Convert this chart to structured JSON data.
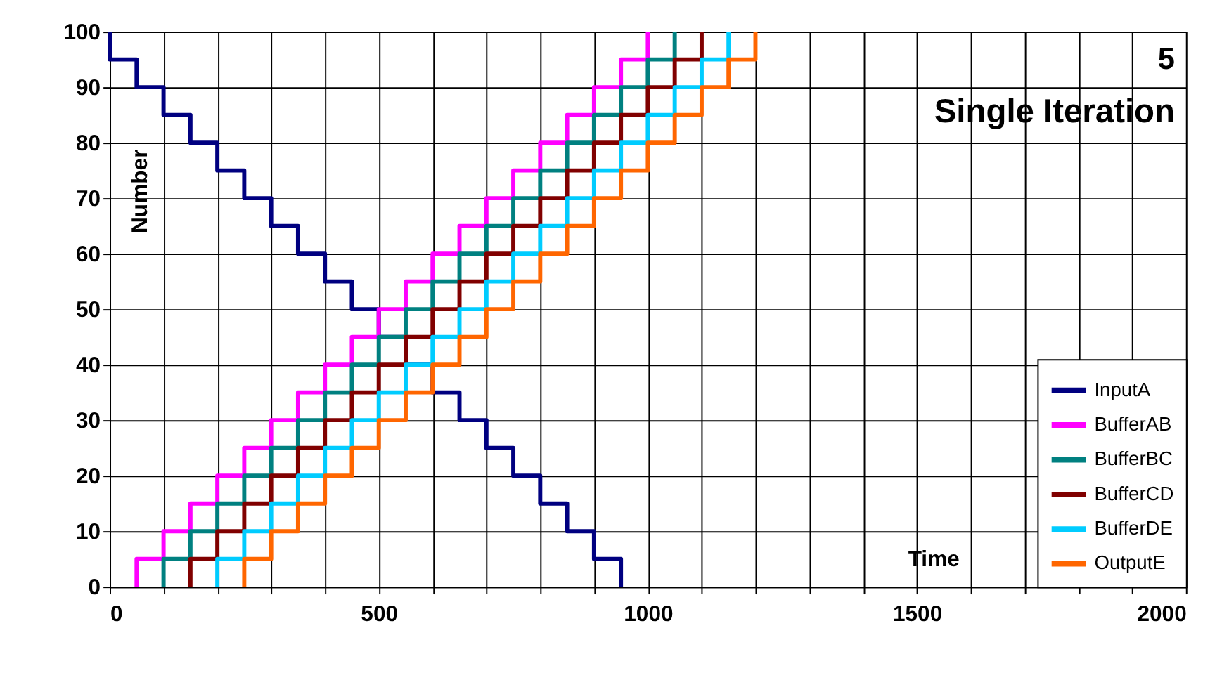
{
  "chart_data": {
    "type": "step",
    "annotations": [
      "5",
      "Single Iteration"
    ],
    "xlabel": "Time",
    "ylabel": "Number",
    "xlim": [
      0,
      2000
    ],
    "ylim": [
      0,
      100
    ],
    "xticks": [
      0,
      {
        "value": 100,
        "label": null
      },
      {
        "value": 200,
        "label": null
      },
      {
        "value": 300,
        "label": null
      },
      {
        "value": 400,
        "label": null
      },
      500,
      {
        "value": 600,
        "label": null
      },
      {
        "value": 700,
        "label": null
      },
      {
        "value": 800,
        "label": null
      },
      {
        "value": 900,
        "label": null
      },
      1000,
      {
        "value": 1100,
        "label": null
      },
      {
        "value": 1200,
        "label": null
      },
      {
        "value": 1300,
        "label": null
      },
      {
        "value": 1400,
        "label": null
      },
      1500,
      {
        "value": 1600,
        "label": null
      },
      {
        "value": 1700,
        "label": null
      },
      {
        "value": 1800,
        "label": null
      },
      {
        "value": 1900,
        "label": null
      },
      2000
    ],
    "yticks": [
      0,
      10,
      20,
      30,
      40,
      50,
      60,
      70,
      80,
      90,
      100
    ],
    "grid": true,
    "legend": "bottom right",
    "line_style": "solid",
    "marker": "none",
    "series": [
      {
        "name": "InputA",
        "color": "#000080",
        "x": [
          0,
          0,
          50,
          100,
          150,
          200,
          250,
          300,
          350,
          400,
          450,
          500,
          550,
          600,
          650,
          700,
          750,
          800,
          850,
          900,
          950
        ],
        "values": [
          100,
          95,
          90,
          85,
          80,
          75,
          70,
          65,
          60,
          55,
          50,
          45,
          40,
          35,
          30,
          25,
          20,
          15,
          10,
          5,
          0
        ]
      },
      {
        "name": "BufferAB",
        "color": "#ff00ff",
        "x": [
          50,
          50,
          100,
          150,
          200,
          250,
          300,
          350,
          400,
          450,
          500,
          550,
          600,
          650,
          700,
          750,
          800,
          850,
          900,
          950,
          1000
        ],
        "values": [
          0,
          5,
          10,
          15,
          20,
          25,
          30,
          35,
          40,
          45,
          50,
          55,
          60,
          65,
          70,
          75,
          80,
          85,
          90,
          95,
          100
        ]
      },
      {
        "name": "BufferBC",
        "color": "#008080",
        "x": [
          100,
          100,
          150,
          200,
          250,
          300,
          350,
          400,
          450,
          500,
          550,
          600,
          650,
          700,
          750,
          800,
          850,
          900,
          950,
          1000,
          1050
        ],
        "values": [
          0,
          5,
          10,
          15,
          20,
          25,
          30,
          35,
          40,
          45,
          50,
          55,
          60,
          65,
          70,
          75,
          80,
          85,
          90,
          95,
          100
        ]
      },
      {
        "name": "BufferCD",
        "color": "#800000",
        "x": [
          150,
          150,
          200,
          250,
          300,
          350,
          400,
          450,
          500,
          550,
          600,
          650,
          700,
          750,
          800,
          850,
          900,
          950,
          1000,
          1050,
          1100
        ],
        "values": [
          0,
          5,
          10,
          15,
          20,
          25,
          30,
          35,
          40,
          45,
          50,
          55,
          60,
          65,
          70,
          75,
          80,
          85,
          90,
          95,
          100
        ]
      },
      {
        "name": "BufferDE",
        "color": "#00ccff",
        "x": [
          200,
          200,
          250,
          300,
          350,
          400,
          450,
          500,
          550,
          600,
          650,
          700,
          750,
          800,
          850,
          900,
          950,
          1000,
          1050,
          1100,
          1150
        ],
        "values": [
          0,
          5,
          10,
          15,
          20,
          25,
          30,
          35,
          40,
          45,
          50,
          55,
          60,
          65,
          70,
          75,
          80,
          85,
          90,
          95,
          100
        ]
      },
      {
        "name": "OutputE",
        "color": "#ff6600",
        "x": [
          250,
          250,
          300,
          350,
          400,
          450,
          500,
          550,
          600,
          650,
          700,
          750,
          800,
          850,
          900,
          950,
          1000,
          1050,
          1100,
          1150,
          1200
        ],
        "values": [
          0,
          5,
          10,
          15,
          20,
          25,
          30,
          35,
          40,
          45,
          50,
          55,
          60,
          65,
          70,
          75,
          80,
          85,
          90,
          95,
          100
        ]
      }
    ]
  }
}
